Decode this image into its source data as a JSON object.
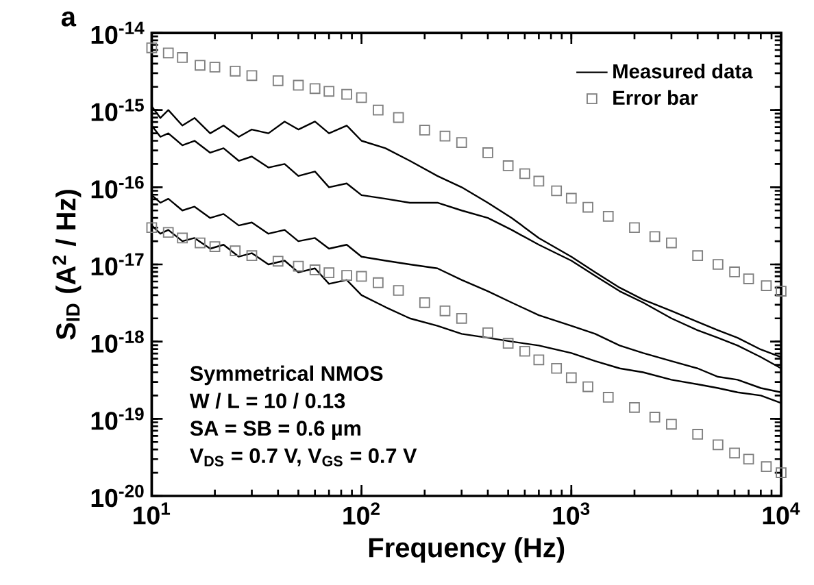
{
  "chart_data": {
    "type": "line",
    "xlabel": "Frequency (Hz)",
    "ylabel": "S$_{ID}$ (A$^{2}$ / Hz)",
    "log": "xy",
    "legend": "top right",
    "xlim": [
      10,
      10000
    ],
    "ylim": [
      1e-20,
      1e-14
    ],
    "xticks": [
      {
        "value": 10,
        "label": "10$^{1}$"
      },
      {
        "value": 100,
        "label": "10$^{2}$"
      },
      {
        "value": 1000,
        "label": "10$^{3}$"
      },
      {
        "value": 10000,
        "label": "10$^{4}$"
      }
    ],
    "yticks": [
      {
        "value": 1e-20,
        "label": "10$^{-20}$"
      },
      {
        "value": 1e-19,
        "label": "10$^{-19}$"
      },
      {
        "value": 1e-18,
        "label": "10$^{-18}$"
      },
      {
        "value": 1e-17,
        "label": "10$^{-17}$"
      },
      {
        "value": 1e-16,
        "label": "10$^{-16}$"
      },
      {
        "value": 1e-15,
        "label": "10$^{-15}$"
      },
      {
        "value": 1e-14,
        "label": "10$^{-14}$"
      }
    ],
    "annotations": [
      "a",
      "Symmetrical NMOS",
      "W / L = 10 / 0.13",
      "SA = SB = 0.6 µm",
      "V$_{DS}$ = 0.7 V, V$_{GS}$ = 0.7 V"
    ],
    "x": [
      10,
      11,
      12,
      14,
      16,
      19,
      22,
      26,
      30,
      36,
      43,
      50,
      60,
      70,
      85,
      100,
      130,
      170,
      230,
      300,
      400,
      520,
      700,
      1000,
      1300,
      1700,
      2200,
      3000,
      4000,
      5000,
      6200,
      8000,
      10000
    ],
    "series": [
      {
        "name": "Measured data",
        "color": "#000000",
        "values": [
          1.12e-15,
          7.9e-16,
          1e-15,
          6.3e-16,
          7.9e-16,
          5e-16,
          6.3e-16,
          4.5e-16,
          5.6e-16,
          5e-16,
          7.1e-16,
          5.6e-16,
          7.1e-16,
          5e-16,
          6.3e-16,
          4e-16,
          3.2e-16,
          2.2e-16,
          1.4e-16,
          1e-16,
          6.3e-17,
          4e-17,
          2.2e-17,
          1.26e-17,
          7.9e-18,
          5e-18,
          3.5e-18,
          2.5e-18,
          1.8e-18,
          1.4e-18,
          1.12e-18,
          7.9e-19,
          6.3e-19
        ]
      },
      {
        "color": "#000000",
        "values": [
          6.3e-16,
          4.5e-16,
          5e-16,
          3.5e-16,
          4e-16,
          2.8e-16,
          3.2e-16,
          2.2e-16,
          2.5e-16,
          1.8e-16,
          2e-16,
          1.4e-16,
          1.6e-16,
          1e-16,
          1.12e-16,
          7.9e-17,
          7.1e-17,
          6.3e-17,
          6.3e-17,
          5e-17,
          4e-17,
          2.8e-17,
          1.8e-17,
          1.12e-17,
          7.1e-18,
          4.5e-18,
          3.2e-18,
          2e-18,
          1.4e-18,
          1.12e-18,
          8.9e-19,
          6.3e-19,
          4.5e-19
        ]
      },
      {
        "color": "#000000",
        "values": [
          7.9e-17,
          6.3e-17,
          7.1e-17,
          5e-17,
          5.6e-17,
          4e-17,
          4.5e-17,
          3.2e-17,
          3.5e-17,
          2.5e-17,
          2.8e-17,
          2e-17,
          2.2e-17,
          1.6e-17,
          1.8e-17,
          1.26e-17,
          1.12e-17,
          1e-17,
          8.9e-18,
          6.3e-18,
          4.5e-18,
          3.2e-18,
          2.2e-18,
          1.6e-18,
          1.26e-18,
          8.9e-19,
          7.1e-19,
          5.6e-19,
          4.5e-19,
          3.5e-19,
          3.2e-19,
          2.5e-19,
          2.2e-19
        ]
      },
      {
        "color": "#000000",
        "values": [
          3.2e-17,
          2.5e-17,
          2.8e-17,
          2e-17,
          2.2e-17,
          1.6e-17,
          1.8e-17,
          1.26e-17,
          1.4e-17,
          1e-17,
          1.12e-17,
          7.9e-18,
          8.9e-18,
          5.6e-18,
          6.3e-18,
          4e-18,
          2.8e-18,
          2e-18,
          1.6e-18,
          1.26e-18,
          1.12e-18,
          1e-18,
          8.9e-19,
          7.1e-19,
          5.6e-19,
          4.5e-19,
          4e-19,
          3.2e-19,
          2.8e-19,
          2.5e-19,
          2.2e-19,
          2e-19,
          1.6e-19
        ]
      },
      {
        "name": "Error bar",
        "type": "scatter",
        "marker": "square",
        "color": "#808080",
        "x": [
          10,
          12,
          14,
          17,
          20,
          25,
          30,
          40,
          50,
          60,
          70,
          85,
          100,
          120,
          150,
          200,
          250,
          300,
          400,
          500,
          600,
          700,
          850,
          1000,
          1200,
          1500,
          2000,
          2500,
          3000,
          4000,
          5000,
          6000,
          7000,
          8500,
          10000
        ],
        "values": [
          6.4e-15,
          5.5e-15,
          4.8e-15,
          3.8e-15,
          3.6e-15,
          3.2e-15,
          2.8e-15,
          2.4e-15,
          2.1e-15,
          1.9e-15,
          1.75e-15,
          1.6e-15,
          1.45e-15,
          1e-15,
          8e-16,
          5.5e-16,
          4.6e-16,
          3.8e-16,
          2.8e-16,
          1.9e-16,
          1.5e-16,
          1.2e-16,
          9e-17,
          7.2e-17,
          5.5e-17,
          4.2e-17,
          3e-17,
          2.3e-17,
          1.9e-17,
          1.3e-17,
          1e-17,
          8e-18,
          6.5e-18,
          5.3e-18,
          4.5e-18
        ]
      },
      {
        "type": "scatter",
        "marker": "square",
        "color": "#808080",
        "x": [
          10,
          12,
          14,
          17,
          20,
          25,
          30,
          40,
          50,
          60,
          70,
          85,
          100,
          120,
          150,
          200,
          250,
          300,
          400,
          500,
          600,
          700,
          850,
          1000,
          1200,
          1500,
          2000,
          2500,
          3000,
          4000,
          5000,
          6000,
          7000,
          8500,
          10000
        ],
        "values": [
          3e-17,
          2.6e-17,
          2.2e-17,
          1.9e-17,
          1.7e-17,
          1.5e-17,
          1.3e-17,
          1.1e-17,
          9.5e-18,
          8.5e-18,
          7.8e-18,
          7.2e-18,
          7e-18,
          5.8e-18,
          4.6e-18,
          3.2e-18,
          2.5e-18,
          2e-18,
          1.3e-18,
          9.5e-19,
          7.5e-19,
          5.8e-19,
          4.5e-19,
          3.4e-19,
          2.6e-19,
          1.9e-19,
          1.4e-19,
          1.05e-19,
          8.5e-20,
          6.3e-20,
          4.6e-20,
          3.6e-20,
          3e-20,
          2.4e-20,
          2e-20
        ]
      }
    ]
  }
}
